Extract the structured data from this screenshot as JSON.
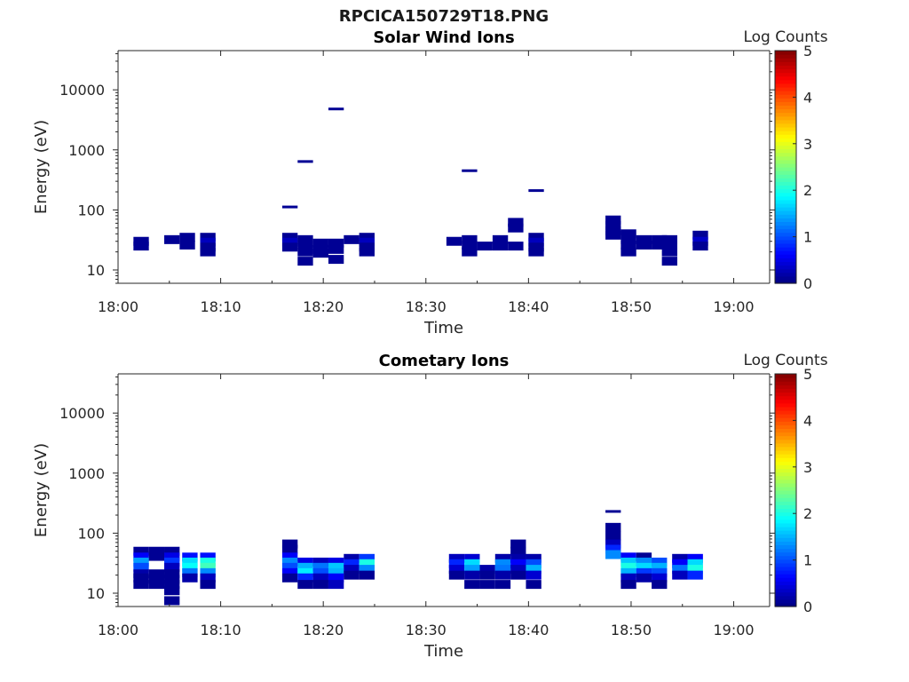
{
  "figure": {
    "title": "RPCICA150729T18.PNG"
  },
  "chart_data": [
    {
      "type": "heatmap",
      "title": "Solar Wind Ions",
      "xlabel": "Time",
      "ylabel": "Energy (eV)",
      "x_ticks": [
        "18:00",
        "18:10",
        "18:20",
        "18:30",
        "18:40",
        "18:50",
        "19:00"
      ],
      "x_range_min": [
        0,
        63.5
      ],
      "y_scale": "log",
      "y_ticks": [
        "10",
        "100",
        "1000",
        "10000"
      ],
      "y_range": [
        6,
        45000
      ],
      "colorbar": {
        "label": "Log Counts",
        "range": [
          0,
          5
        ],
        "ticks": [
          "0",
          "1",
          "2",
          "3",
          "4",
          "5"
        ],
        "colormap": "jet"
      },
      "cell_width_min": 1.5,
      "columns": [
        {
          "t": 2.25,
          "cells": [
            {
              "e": 30,
              "v": 0.1
            },
            {
              "e": 25,
              "v": 0.1
            }
          ]
        },
        {
          "t": 5.25,
          "cells": [
            {
              "e": 32,
              "v": 0.1
            }
          ]
        },
        {
          "t": 6.75,
          "cells": [
            {
              "e": 35,
              "v": 0.1
            },
            {
              "e": 26,
              "v": 0.1
            }
          ]
        },
        {
          "t": 8.75,
          "cells": [
            {
              "e": 35,
              "v": 0.1
            },
            {
              "e": 29,
              "v": 0.3
            },
            {
              "e": 24,
              "v": 0.1
            },
            {
              "e": 20,
              "v": 0.1
            }
          ]
        },
        {
          "t": 16.75,
          "cells": [
            {
              "e": 112,
              "v": 0.1
            },
            {
              "e": 35,
              "v": 0.1
            },
            {
              "e": 29,
              "v": 0.3
            },
            {
              "e": 24,
              "v": 0.1
            }
          ]
        },
        {
          "t": 18.25,
          "cells": [
            {
              "e": 640,
              "v": 0.1
            },
            {
              "e": 32,
              "v": 0.1
            },
            {
              "e": 26,
              "v": 0.1
            },
            {
              "e": 20,
              "v": 0.1
            },
            {
              "e": 14,
              "v": 0.1
            }
          ]
        },
        {
          "t": 19.75,
          "cells": [
            {
              "e": 28,
              "v": 0.1
            },
            {
              "e": 22,
              "v": 0.1
            },
            {
              "e": 19,
              "v": 0.1
            }
          ]
        },
        {
          "t": 21.25,
          "cells": [
            {
              "e": 4800,
              "v": 0.1
            },
            {
              "e": 28,
              "v": 0.1
            },
            {
              "e": 22,
              "v": 0.1
            },
            {
              "e": 15,
              "v": 0.1
            }
          ]
        },
        {
          "t": 22.75,
          "cells": [
            {
              "e": 32,
              "v": 0.1
            }
          ]
        },
        {
          "t": 24.25,
          "cells": [
            {
              "e": 35,
              "v": 0.1
            },
            {
              "e": 29,
              "v": 0.3
            },
            {
              "e": 24,
              "v": 0.1
            },
            {
              "e": 20,
              "v": 0.1
            }
          ]
        },
        {
          "t": 32.75,
          "cells": [
            {
              "e": 30,
              "v": 0.1
            }
          ]
        },
        {
          "t": 34.25,
          "cells": [
            {
              "e": 450,
              "v": 0.1
            },
            {
              "e": 32,
              "v": 0.1
            },
            {
              "e": 26,
              "v": 0.1
            },
            {
              "e": 20,
              "v": 0.1
            }
          ]
        },
        {
          "t": 35.75,
          "cells": [
            {
              "e": 25,
              "v": 0.1
            }
          ]
        },
        {
          "t": 37.25,
          "cells": [
            {
              "e": 32,
              "v": 0.1
            },
            {
              "e": 25,
              "v": 0.1
            }
          ]
        },
        {
          "t": 38.75,
          "cells": [
            {
              "e": 62,
              "v": 0.1
            },
            {
              "e": 50,
              "v": 0.1
            },
            {
              "e": 25,
              "v": 0.1
            }
          ]
        },
        {
          "t": 40.75,
          "cells": [
            {
              "e": 210,
              "v": 0.1
            },
            {
              "e": 35,
              "v": 0.1
            },
            {
              "e": 29,
              "v": 0.3
            },
            {
              "e": 24,
              "v": 0.1
            },
            {
              "e": 20,
              "v": 0.1
            }
          ]
        },
        {
          "t": 48.25,
          "cells": [
            {
              "e": 68,
              "v": 0.1
            },
            {
              "e": 55,
              "v": 0.1
            },
            {
              "e": 45,
              "v": 0.1
            },
            {
              "e": 38,
              "v": 0.1
            }
          ]
        },
        {
          "t": 49.75,
          "cells": [
            {
              "e": 40,
              "v": 0.1
            },
            {
              "e": 32,
              "v": 0.1
            },
            {
              "e": 26,
              "v": 0.1
            },
            {
              "e": 20,
              "v": 0.1
            }
          ]
        },
        {
          "t": 51.25,
          "cells": [
            {
              "e": 32,
              "v": 0.1
            },
            {
              "e": 26,
              "v": 0.1
            }
          ]
        },
        {
          "t": 52.75,
          "cells": [
            {
              "e": 32,
              "v": 0.1
            },
            {
              "e": 26,
              "v": 0.1
            }
          ]
        },
        {
          "t": 53.75,
          "cells": [
            {
              "e": 32,
              "v": 0.1
            },
            {
              "e": 26,
              "v": 0.1
            },
            {
              "e": 20,
              "v": 0.1
            },
            {
              "e": 14,
              "v": 0.1
            }
          ]
        },
        {
          "t": 56.75,
          "cells": [
            {
              "e": 38,
              "v": 0.1
            },
            {
              "e": 30,
              "v": 0.35
            },
            {
              "e": 25,
              "v": 0.1
            }
          ]
        }
      ]
    },
    {
      "type": "heatmap",
      "title": "Cometary Ions",
      "xlabel": "Time",
      "ylabel": "Energy (eV)",
      "x_ticks": [
        "18:00",
        "18:10",
        "18:20",
        "18:30",
        "18:40",
        "18:50",
        "19:00"
      ],
      "x_range_min": [
        0,
        63.5
      ],
      "y_scale": "log",
      "y_ticks": [
        "10",
        "100",
        "1000",
        "10000"
      ],
      "y_range": [
        6,
        45000
      ],
      "colorbar": {
        "label": "Log Counts",
        "range": [
          0,
          5
        ],
        "ticks": [
          "0",
          "1",
          "2",
          "3",
          "4",
          "5"
        ],
        "colormap": "jet"
      },
      "cell_width_min": 1.5,
      "columns": [
        {
          "t": 2.25,
          "cells": [
            {
              "e": 50,
              "v": 0.1
            },
            {
              "e": 40,
              "v": 0.6
            },
            {
              "e": 33,
              "v": 1.4
            },
            {
              "e": 27,
              "v": 1.0
            },
            {
              "e": 21,
              "v": 0.2
            },
            {
              "e": 18,
              "v": 0.1
            },
            {
              "e": 14,
              "v": 0.1
            }
          ]
        },
        {
          "t": 3.75,
          "cells": [
            {
              "e": 50,
              "v": 0.1
            },
            {
              "e": 41,
              "v": 0.1
            },
            {
              "e": 21,
              "v": 0.1
            },
            {
              "e": 17,
              "v": 0.1
            },
            {
              "e": 14,
              "v": 0.1
            }
          ]
        },
        {
          "t": 5.25,
          "cells": [
            {
              "e": 50,
              "v": 0.1
            },
            {
              "e": 40,
              "v": 0.5
            },
            {
              "e": 33,
              "v": 0.9
            },
            {
              "e": 27,
              "v": 0.3
            },
            {
              "e": 21,
              "v": 0.1
            },
            {
              "e": 17,
              "v": 0.1
            },
            {
              "e": 14,
              "v": 0.1
            },
            {
              "e": 11,
              "v": 0.1
            },
            {
              "e": 7.5,
              "v": 0.1
            }
          ]
        },
        {
          "t": 7.0,
          "cells": [
            {
              "e": 40,
              "v": 0.7
            },
            {
              "e": 33,
              "v": 1.7
            },
            {
              "e": 27,
              "v": 1.9
            },
            {
              "e": 22,
              "v": 1.2
            },
            {
              "e": 18,
              "v": 0.2
            }
          ]
        },
        {
          "t": 8.75,
          "cells": [
            {
              "e": 40,
              "v": 0.7
            },
            {
              "e": 33,
              "v": 2.0
            },
            {
              "e": 27,
              "v": 2.2
            },
            {
              "e": 22,
              "v": 1.3
            },
            {
              "e": 18,
              "v": 0.3
            },
            {
              "e": 14,
              "v": 0.1
            }
          ]
        },
        {
          "t": 16.75,
          "cells": [
            {
              "e": 66,
              "v": 0.1
            },
            {
              "e": 54,
              "v": 0.1
            },
            {
              "e": 40,
              "v": 0.6
            },
            {
              "e": 33,
              "v": 1.3
            },
            {
              "e": 27,
              "v": 1.0
            },
            {
              "e": 22,
              "v": 0.6
            },
            {
              "e": 18,
              "v": 0.1
            }
          ]
        },
        {
          "t": 18.25,
          "cells": [
            {
              "e": 33,
              "v": 0.5
            },
            {
              "e": 27,
              "v": 1.5
            },
            {
              "e": 22,
              "v": 1.8
            },
            {
              "e": 18,
              "v": 0.8
            },
            {
              "e": 14,
              "v": 0.1
            }
          ]
        },
        {
          "t": 19.75,
          "cells": [
            {
              "e": 33,
              "v": 0.3
            },
            {
              "e": 27,
              "v": 1.2
            },
            {
              "e": 22,
              "v": 1.0
            },
            {
              "e": 18,
              "v": 0.3
            },
            {
              "e": 14,
              "v": 0.1
            }
          ]
        },
        {
          "t": 21.25,
          "cells": [
            {
              "e": 33,
              "v": 0.5
            },
            {
              "e": 27,
              "v": 1.6
            },
            {
              "e": 22,
              "v": 1.5
            },
            {
              "e": 18,
              "v": 0.6
            },
            {
              "e": 14,
              "v": 0.3
            }
          ]
        },
        {
          "t": 22.75,
          "cells": [
            {
              "e": 38,
              "v": 0.2
            },
            {
              "e": 31,
              "v": 0.8
            },
            {
              "e": 25,
              "v": 0.3
            },
            {
              "e": 20,
              "v": 0.1
            }
          ]
        },
        {
          "t": 24.25,
          "cells": [
            {
              "e": 38,
              "v": 0.9
            },
            {
              "e": 31,
              "v": 2.0
            },
            {
              "e": 25,
              "v": 1.3
            },
            {
              "e": 20,
              "v": 0.1
            }
          ]
        },
        {
          "t": 33.0,
          "cells": [
            {
              "e": 38,
              "v": 0.3
            },
            {
              "e": 31,
              "v": 0.8
            },
            {
              "e": 25,
              "v": 0.4
            },
            {
              "e": 20,
              "v": 0.1
            }
          ]
        },
        {
          "t": 34.5,
          "cells": [
            {
              "e": 38,
              "v": 0.4
            },
            {
              "e": 31,
              "v": 1.7
            },
            {
              "e": 25,
              "v": 1.4
            },
            {
              "e": 20,
              "v": 0.2
            },
            {
              "e": 14,
              "v": 0.1
            }
          ]
        },
        {
          "t": 36.0,
          "cells": [
            {
              "e": 25,
              "v": 0.2
            },
            {
              "e": 20,
              "v": 0.1
            },
            {
              "e": 14,
              "v": 0.1
            }
          ]
        },
        {
          "t": 37.5,
          "cells": [
            {
              "e": 38,
              "v": 0.2
            },
            {
              "e": 31,
              "v": 1.3
            },
            {
              "e": 25,
              "v": 1.2
            },
            {
              "e": 20,
              "v": 0.2
            },
            {
              "e": 14,
              "v": 0.1
            }
          ]
        },
        {
          "t": 39.0,
          "cells": [
            {
              "e": 66,
              "v": 0.1
            },
            {
              "e": 50,
              "v": 0.1
            },
            {
              "e": 38,
              "v": 0.2
            },
            {
              "e": 31,
              "v": 0.6
            },
            {
              "e": 25,
              "v": 0.3
            },
            {
              "e": 20,
              "v": 0.1
            }
          ]
        },
        {
          "t": 40.5,
          "cells": [
            {
              "e": 38,
              "v": 0.2
            },
            {
              "e": 31,
              "v": 1.0
            },
            {
              "e": 25,
              "v": 1.5
            },
            {
              "e": 20,
              "v": 0.4
            },
            {
              "e": 14,
              "v": 0.1
            }
          ]
        },
        {
          "t": 48.25,
          "cells": [
            {
              "e": 230,
              "v": 0.1
            },
            {
              "e": 125,
              "v": 0.1
            },
            {
              "e": 90,
              "v": 0.1
            },
            {
              "e": 66,
              "v": 0.3
            },
            {
              "e": 54,
              "v": 0.8
            },
            {
              "e": 44,
              "v": 1.3
            }
          ]
        },
        {
          "t": 49.75,
          "cells": [
            {
              "e": 40,
              "v": 0.6
            },
            {
              "e": 33,
              "v": 1.6
            },
            {
              "e": 27,
              "v": 2.0
            },
            {
              "e": 22,
              "v": 1.5
            },
            {
              "e": 18,
              "v": 0.3
            },
            {
              "e": 14,
              "v": 0.1
            }
          ]
        },
        {
          "t": 51.25,
          "cells": [
            {
              "e": 40,
              "v": 0.1
            },
            {
              "e": 33,
              "v": 1.3
            },
            {
              "e": 27,
              "v": 1.7
            },
            {
              "e": 22,
              "v": 0.9
            },
            {
              "e": 18,
              "v": 0.2
            }
          ]
        },
        {
          "t": 52.75,
          "cells": [
            {
              "e": 33,
              "v": 1.0
            },
            {
              "e": 27,
              "v": 1.5
            },
            {
              "e": 22,
              "v": 1.0
            },
            {
              "e": 18,
              "v": 0.4
            },
            {
              "e": 14,
              "v": 0.1
            }
          ]
        },
        {
          "t": 54.75,
          "cells": [
            {
              "e": 38,
              "v": 0.2
            },
            {
              "e": 31,
              "v": 0.6
            },
            {
              "e": 25,
              "v": 1.2
            },
            {
              "e": 20,
              "v": 0.3
            }
          ]
        },
        {
          "t": 56.25,
          "cells": [
            {
              "e": 38,
              "v": 0.6
            },
            {
              "e": 31,
              "v": 1.7
            },
            {
              "e": 25,
              "v": 2.0
            },
            {
              "e": 20,
              "v": 0.8
            }
          ]
        }
      ]
    }
  ]
}
